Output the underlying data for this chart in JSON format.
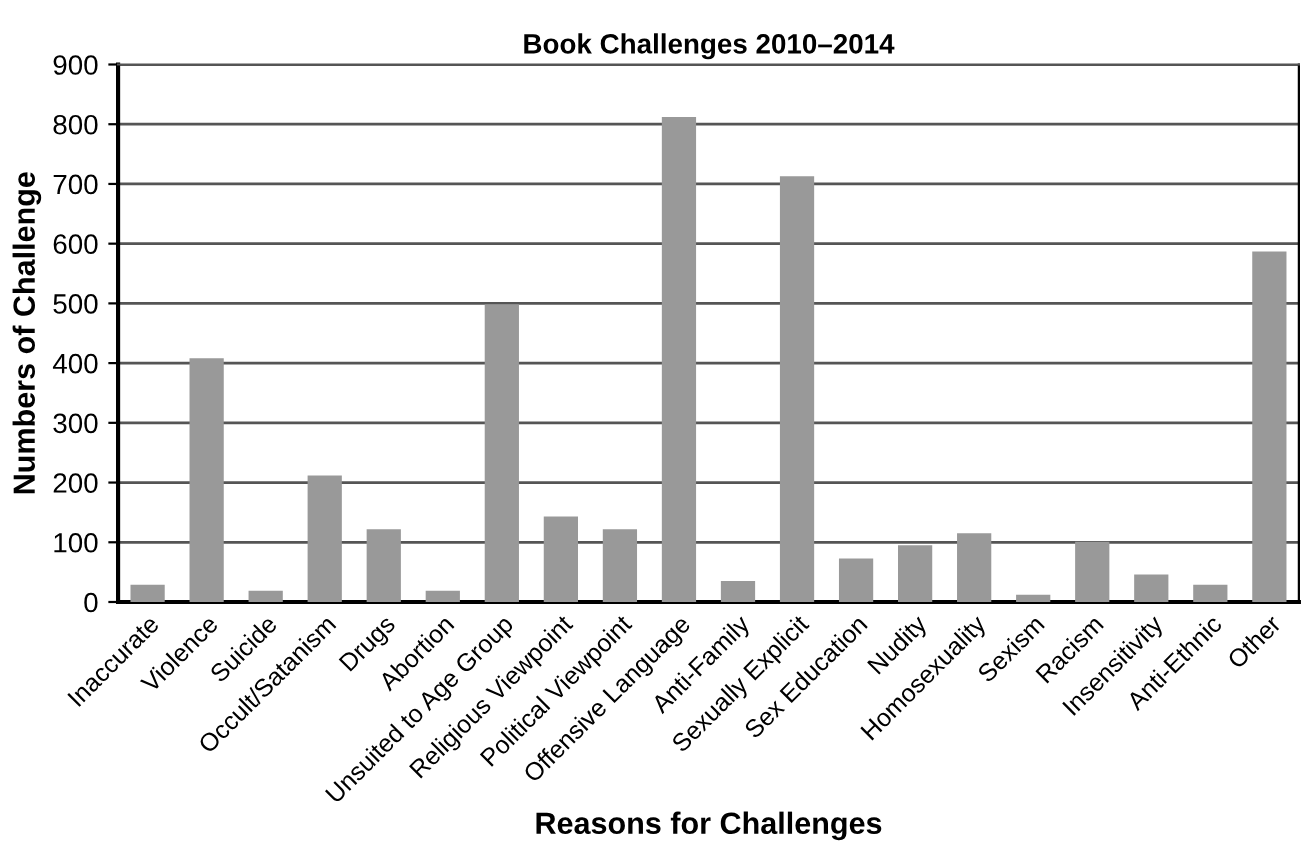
{
  "chart_data": {
    "type": "bar",
    "title": "Book Challenges 2010–2014",
    "xlabel": "Reasons for Challenges",
    "ylabel": "Numbers of Challenge",
    "categories": [
      "Inaccurate",
      "Violence",
      "Suicide",
      "Occult/Satanism",
      "Drugs",
      "Abortion",
      "Unsuited to Age Group",
      "Religious Viewpoint",
      "Political Viewpoint",
      "Offensive Language",
      "Anti-Family",
      "Sexually Explicit",
      "Sex Education",
      "Nudity",
      "Homosexuality",
      "Sexism",
      "Racism",
      "Insensitivity",
      "Anti-Ethnic",
      "Other"
    ],
    "values": [
      29,
      408,
      19,
      212,
      122,
      19,
      498,
      143,
      122,
      812,
      35,
      713,
      73,
      95,
      115,
      12,
      101,
      46,
      29,
      587
    ],
    "color": "#999999",
    "ylim": [
      0,
      900
    ],
    "yticks": [
      0,
      100,
      200,
      300,
      400,
      500,
      600,
      700,
      800,
      900
    ],
    "grid": "y",
    "legend": false
  }
}
